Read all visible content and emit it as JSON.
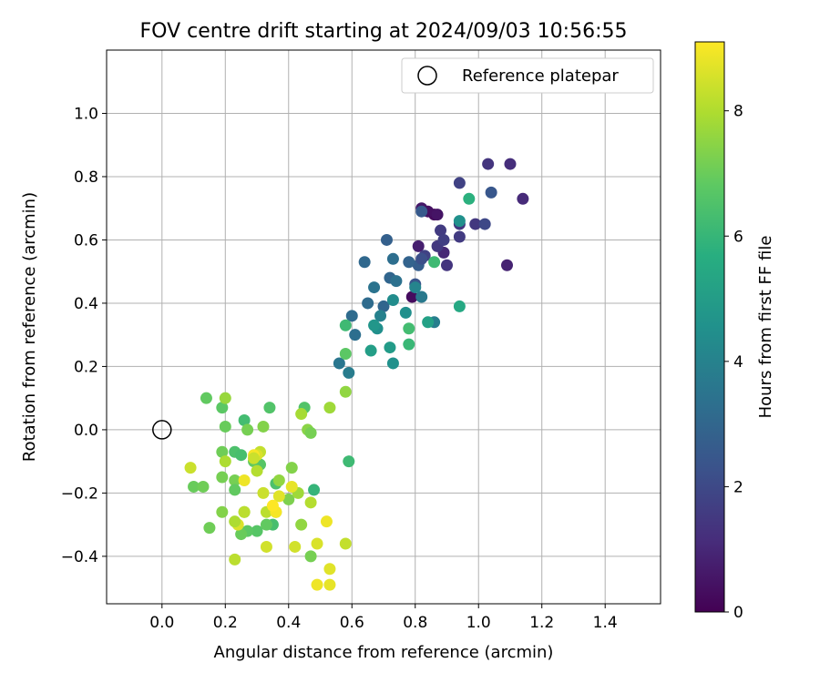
{
  "chart_data": {
    "type": "scatter",
    "title": "FOV centre drift starting at 2024/09/03 10:56:55",
    "xlabel": "Angular distance from reference (arcmin)",
    "ylabel": "Rotation from reference (arcmin)",
    "xlim": [
      -0.175,
      1.575
    ],
    "ylim": [
      -0.55,
      1.2
    ],
    "xticks": [
      "0.0",
      "0.2",
      "0.4",
      "0.6",
      "0.8",
      "1.0",
      "1.2",
      "1.4"
    ],
    "yticks": [
      "−0.4",
      "−0.2",
      "0.0",
      "0.2",
      "0.4",
      "0.6",
      "0.8",
      "1.0"
    ],
    "grid": true,
    "legend": {
      "position": "top-right",
      "entries": [
        {
          "label": "Reference platepar",
          "marker": "open-circle",
          "x": 0.0,
          "y": 0.0
        }
      ]
    },
    "colorbar": {
      "label": "Hours from first FF file",
      "colormap": "viridis",
      "range": [
        0,
        9.1
      ],
      "ticks": [
        "0",
        "2",
        "4",
        "6",
        "8"
      ]
    },
    "points": [
      [
        0.86,
        0.68,
        0.2
      ],
      [
        0.82,
        0.7,
        0.6
      ],
      [
        0.84,
        0.69,
        0.4
      ],
      [
        0.87,
        0.68,
        0.5
      ],
      [
        0.79,
        0.42,
        0.3
      ],
      [
        1.09,
        0.52,
        0.9
      ],
      [
        0.81,
        0.58,
        0.8
      ],
      [
        0.89,
        0.56,
        1.0
      ],
      [
        0.9,
        0.52,
        1.4
      ],
      [
        1.14,
        0.73,
        1.1
      ],
      [
        1.1,
        0.84,
        1.2
      ],
      [
        1.03,
        0.84,
        1.4
      ],
      [
        0.88,
        0.63,
        1.6
      ],
      [
        0.87,
        0.58,
        1.5
      ],
      [
        0.83,
        0.55,
        1.8
      ],
      [
        0.89,
        0.6,
        1.7
      ],
      [
        0.94,
        0.61,
        1.6
      ],
      [
        0.94,
        0.65,
        1.5
      ],
      [
        0.99,
        0.65,
        1.5
      ],
      [
        1.02,
        0.65,
        2.0
      ],
      [
        0.94,
        0.78,
        1.8
      ],
      [
        1.04,
        0.75,
        2.5
      ],
      [
        0.82,
        0.69,
        2.6
      ],
      [
        0.8,
        0.46,
        2.4
      ],
      [
        0.81,
        0.52,
        2.7
      ],
      [
        0.82,
        0.54,
        2.2
      ],
      [
        0.71,
        0.6,
        2.8
      ],
      [
        0.64,
        0.53,
        3.1
      ],
      [
        0.78,
        0.53,
        2.9
      ],
      [
        0.72,
        0.48,
        3.0
      ],
      [
        0.74,
        0.47,
        3.4
      ],
      [
        0.73,
        0.54,
        3.3
      ],
      [
        0.67,
        0.45,
        3.5
      ],
      [
        0.65,
        0.4,
        3.2
      ],
      [
        0.7,
        0.39,
        3.0
      ],
      [
        0.6,
        0.36,
        3.2
      ],
      [
        0.61,
        0.3,
        3.3
      ],
      [
        0.56,
        0.21,
        3.6
      ],
      [
        0.59,
        0.18,
        3.8
      ],
      [
        0.68,
        0.32,
        4.5
      ],
      [
        0.69,
        0.36,
        4.0
      ],
      [
        0.67,
        0.33,
        4.8
      ],
      [
        0.73,
        0.41,
        4.4
      ],
      [
        0.77,
        0.37,
        4.5
      ],
      [
        0.86,
        0.34,
        3.9
      ],
      [
        0.82,
        0.42,
        3.7
      ],
      [
        0.8,
        0.45,
        4.1
      ],
      [
        0.72,
        0.26,
        5.0
      ],
      [
        0.66,
        0.25,
        5.1
      ],
      [
        0.73,
        0.21,
        4.6
      ],
      [
        0.84,
        0.34,
        5.2
      ],
      [
        0.94,
        0.39,
        5.5
      ],
      [
        0.94,
        0.66,
        4.6
      ],
      [
        0.97,
        0.73,
        5.8
      ],
      [
        0.86,
        0.53,
        6.2
      ],
      [
        0.78,
        0.27,
        6.1
      ],
      [
        0.78,
        0.32,
        6.3
      ],
      [
        0.58,
        0.33,
        6.2
      ],
      [
        0.58,
        0.24,
        6.8
      ],
      [
        0.59,
        -0.1,
        6.2
      ],
      [
        0.48,
        -0.19,
        6.0
      ],
      [
        0.45,
        0.07,
        6.6
      ],
      [
        0.34,
        0.07,
        6.6
      ],
      [
        0.26,
        0.03,
        6.3
      ],
      [
        0.14,
        0.1,
        6.9
      ],
      [
        0.19,
        0.07,
        6.8
      ],
      [
        0.2,
        0.1,
        7.7
      ],
      [
        0.2,
        0.01,
        7.0
      ],
      [
        0.19,
        -0.07,
        7.1
      ],
      [
        0.23,
        -0.07,
        6.5
      ],
      [
        0.25,
        -0.08,
        6.4
      ],
      [
        0.27,
        0.0,
        7.2
      ],
      [
        0.32,
        0.01,
        7.4
      ],
      [
        0.46,
        0.0,
        7.5
      ],
      [
        0.47,
        -0.01,
        7.2
      ],
      [
        0.44,
        0.05,
        7.9
      ],
      [
        0.53,
        0.07,
        7.8
      ],
      [
        0.58,
        0.12,
        7.6
      ],
      [
        0.29,
        -0.1,
        6.9
      ],
      [
        0.31,
        -0.11,
        6.7
      ],
      [
        0.36,
        -0.17,
        6.5
      ],
      [
        0.35,
        -0.3,
        6.4
      ],
      [
        0.3,
        -0.32,
        6.7
      ],
      [
        0.33,
        -0.3,
        6.9
      ],
      [
        0.27,
        -0.32,
        6.8
      ],
      [
        0.25,
        -0.33,
        7.0
      ],
      [
        0.15,
        -0.31,
        7.1
      ],
      [
        0.19,
        -0.26,
        7.4
      ],
      [
        0.1,
        -0.18,
        7.0
      ],
      [
        0.13,
        -0.18,
        7.1
      ],
      [
        0.19,
        -0.15,
        7.2
      ],
      [
        0.23,
        -0.16,
        7.2
      ],
      [
        0.23,
        -0.19,
        6.9
      ],
      [
        0.26,
        -0.26,
        7.5
      ],
      [
        0.2,
        -0.1,
        8.0
      ],
      [
        0.36,
        -0.26,
        7.5
      ],
      [
        0.37,
        -0.16,
        7.6
      ],
      [
        0.4,
        -0.22,
        7.3
      ],
      [
        0.41,
        -0.12,
        7.4
      ],
      [
        0.43,
        -0.2,
        7.8
      ],
      [
        0.44,
        -0.3,
        7.6
      ],
      [
        0.47,
        -0.4,
        7.2
      ],
      [
        0.47,
        -0.23,
        8.1
      ],
      [
        0.49,
        -0.36,
        8.6
      ],
      [
        0.52,
        -0.29,
        8.9
      ],
      [
        0.53,
        -0.44,
        8.7
      ],
      [
        0.53,
        -0.49,
        8.8
      ],
      [
        0.49,
        -0.49,
        8.9
      ],
      [
        0.58,
        -0.36,
        8.3
      ],
      [
        0.42,
        -0.37,
        8.5
      ],
      [
        0.33,
        -0.37,
        8.5
      ],
      [
        0.3,
        -0.13,
        8.1
      ],
      [
        0.31,
        -0.07,
        8.3
      ],
      [
        0.3,
        -0.08,
        8.6
      ],
      [
        0.26,
        -0.16,
        8.9
      ],
      [
        0.32,
        -0.2,
        8.4
      ],
      [
        0.33,
        -0.26,
        8.2
      ],
      [
        0.36,
        -0.26,
        9.0
      ],
      [
        0.37,
        -0.21,
        8.7
      ],
      [
        0.41,
        -0.18,
        8.8
      ],
      [
        0.09,
        -0.12,
        8.4
      ],
      [
        0.26,
        -0.26,
        8.2
      ],
      [
        0.24,
        -0.3,
        8.6
      ],
      [
        0.23,
        -0.29,
        8.0
      ],
      [
        0.23,
        -0.41,
        8.2
      ],
      [
        0.35,
        -0.24,
        9.1
      ],
      [
        0.29,
        -0.08,
        9.0
      ],
      [
        0.29,
        -0.09,
        8.4
      ]
    ]
  }
}
